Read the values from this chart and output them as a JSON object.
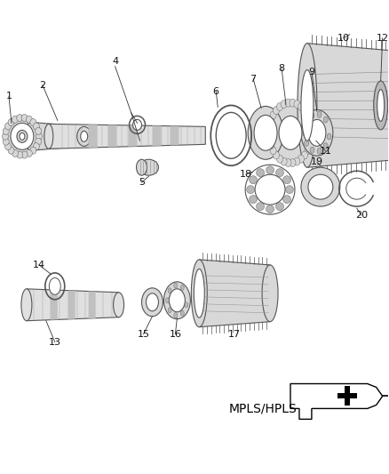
{
  "bg_color": "#ffffff",
  "lc": "#555555",
  "lc2": "#333333",
  "fill_light": "#d8d8d8",
  "fill_mid": "#b8b8b8",
  "fill_dark": "#909090",
  "label_fs": 8,
  "lw": 0.8,
  "mpls_text": "MPLS/HPLS"
}
